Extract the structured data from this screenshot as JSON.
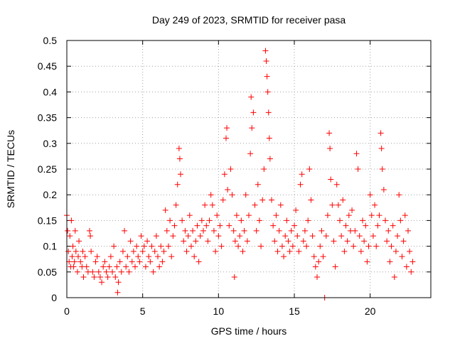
{
  "chart_data": {
    "type": "scatter",
    "title": "Day 249 of 2023, SRMTID for receiver pasa",
    "xlabel": "GPS time / hours",
    "ylabel": "SRMTID / TECUs",
    "xlim": [
      0,
      24
    ],
    "ylim": [
      0,
      0.5
    ],
    "xticks": [
      0,
      5,
      10,
      15,
      20
    ],
    "xtick_labels": [
      "0",
      "5",
      "10",
      "15",
      "20"
    ],
    "yticks": [
      0,
      0.05,
      0.1,
      0.15,
      0.2,
      0.25,
      0.3,
      0.35,
      0.4,
      0.45,
      0.5
    ],
    "ytick_labels": [
      "0",
      "0.05",
      "0.1",
      "0.15",
      "0.2",
      "0.25",
      "0.3",
      "0.35",
      "0.4",
      "0.45",
      "0.5"
    ],
    "grid": true,
    "marker": "+",
    "series": [
      {
        "name": "SRMTID",
        "color": "#ff0000",
        "points": [
          [
            0.0,
            0.16
          ],
          [
            0.05,
            0.13
          ],
          [
            0.1,
            0.09
          ],
          [
            0.15,
            0.07
          ],
          [
            0.2,
            0.12
          ],
          [
            0.25,
            0.06
          ],
          [
            0.3,
            0.15
          ],
          [
            0.35,
            0.08
          ],
          [
            0.4,
            0.1
          ],
          [
            0.45,
            0.06
          ],
          [
            0.5,
            0.07
          ],
          [
            0.55,
            0.13
          ],
          [
            0.6,
            0.09
          ],
          [
            0.7,
            0.05
          ],
          [
            0.75,
            0.08
          ],
          [
            0.8,
            0.11
          ],
          [
            0.9,
            0.07
          ],
          [
            1.0,
            0.06
          ],
          [
            1.05,
            0.09
          ],
          [
            1.1,
            0.04
          ],
          [
            1.2,
            0.08
          ],
          [
            1.3,
            0.06
          ],
          [
            1.4,
            0.05
          ],
          [
            1.5,
            0.13
          ],
          [
            1.55,
            0.12
          ],
          [
            1.6,
            0.09
          ],
          [
            1.7,
            0.05
          ],
          [
            1.8,
            0.04
          ],
          [
            1.9,
            0.07
          ],
          [
            2.0,
            0.08
          ],
          [
            2.1,
            0.05
          ],
          [
            2.2,
            0.04
          ],
          [
            2.3,
            0.03
          ],
          [
            2.4,
            0.06
          ],
          [
            2.5,
            0.07
          ],
          [
            2.6,
            0.05
          ],
          [
            2.7,
            0.04
          ],
          [
            2.8,
            0.06
          ],
          [
            2.9,
            0.08
          ],
          [
            3.0,
            0.05
          ],
          [
            3.1,
            0.1
          ],
          [
            3.2,
            0.04
          ],
          [
            3.3,
            0.06
          ],
          [
            3.35,
            0.01
          ],
          [
            3.4,
            0.03
          ],
          [
            3.5,
            0.07
          ],
          [
            3.6,
            0.05
          ],
          [
            3.7,
            0.09
          ],
          [
            3.8,
            0.13
          ],
          [
            3.9,
            0.06
          ],
          [
            4.0,
            0.08
          ],
          [
            4.1,
            0.05
          ],
          [
            4.2,
            0.11
          ],
          [
            4.3,
            0.07
          ],
          [
            4.4,
            0.09
          ],
          [
            4.5,
            0.06
          ],
          [
            4.6,
            0.1
          ],
          [
            4.7,
            0.08
          ],
          [
            4.8,
            0.07
          ],
          [
            4.9,
            0.12
          ],
          [
            5.0,
            0.09
          ],
          [
            5.1,
            0.1
          ],
          [
            5.2,
            0.06
          ],
          [
            5.3,
            0.11
          ],
          [
            5.4,
            0.08
          ],
          [
            5.5,
            0.07
          ],
          [
            5.6,
            0.1
          ],
          [
            5.7,
            0.05
          ],
          [
            5.8,
            0.09
          ],
          [
            5.9,
            0.12
          ],
          [
            6.0,
            0.08
          ],
          [
            6.1,
            0.06
          ],
          [
            6.2,
            0.1
          ],
          [
            6.3,
            0.07
          ],
          [
            6.4,
            0.09
          ],
          [
            6.5,
            0.17
          ],
          [
            6.6,
            0.13
          ],
          [
            6.7,
            0.1
          ],
          [
            6.8,
            0.15
          ],
          [
            6.9,
            0.08
          ],
          [
            7.0,
            0.12
          ],
          [
            7.1,
            0.14
          ],
          [
            7.2,
            0.18
          ],
          [
            7.3,
            0.22
          ],
          [
            7.4,
            0.29
          ],
          [
            7.45,
            0.27
          ],
          [
            7.5,
            0.24
          ],
          [
            7.6,
            0.15
          ],
          [
            7.7,
            0.11
          ],
          [
            7.8,
            0.13
          ],
          [
            7.9,
            0.09
          ],
          [
            8.0,
            0.12
          ],
          [
            8.1,
            0.16
          ],
          [
            8.2,
            0.1
          ],
          [
            8.3,
            0.13
          ],
          [
            8.4,
            0.08
          ],
          [
            8.5,
            0.11
          ],
          [
            8.6,
            0.14
          ],
          [
            8.7,
            0.07
          ],
          [
            8.8,
            0.12
          ],
          [
            8.9,
            0.15
          ],
          [
            9.0,
            0.13
          ],
          [
            9.1,
            0.18
          ],
          [
            9.2,
            0.14
          ],
          [
            9.3,
            0.11
          ],
          [
            9.4,
            0.15
          ],
          [
            9.5,
            0.2
          ],
          [
            9.6,
            0.18
          ],
          [
            9.7,
            0.13
          ],
          [
            9.8,
            0.09
          ],
          [
            9.9,
            0.16
          ],
          [
            10.0,
            0.12
          ],
          [
            10.1,
            0.14
          ],
          [
            10.2,
            0.1
          ],
          [
            10.3,
            0.19
          ],
          [
            10.4,
            0.24
          ],
          [
            10.5,
            0.31
          ],
          [
            10.55,
            0.33
          ],
          [
            10.6,
            0.21
          ],
          [
            10.7,
            0.14
          ],
          [
            10.8,
            0.25
          ],
          [
            10.9,
            0.2
          ],
          [
            11.0,
            0.13
          ],
          [
            11.05,
            0.04
          ],
          [
            11.1,
            0.11
          ],
          [
            11.2,
            0.16
          ],
          [
            11.3,
            0.1
          ],
          [
            11.4,
            0.12
          ],
          [
            11.5,
            0.15
          ],
          [
            11.6,
            0.09
          ],
          [
            11.7,
            0.13
          ],
          [
            11.8,
            0.2
          ],
          [
            11.9,
            0.11
          ],
          [
            12.0,
            0.16
          ],
          [
            12.1,
            0.28
          ],
          [
            12.15,
            0.39
          ],
          [
            12.2,
            0.33
          ],
          [
            12.3,
            0.36
          ],
          [
            12.4,
            0.18
          ],
          [
            12.5,
            0.13
          ],
          [
            12.6,
            0.22
          ],
          [
            12.7,
            0.15
          ],
          [
            12.8,
            0.1
          ],
          [
            12.9,
            0.19
          ],
          [
            13.0,
            0.25
          ],
          [
            13.1,
            0.48
          ],
          [
            13.15,
            0.46
          ],
          [
            13.2,
            0.43
          ],
          [
            13.25,
            0.4
          ],
          [
            13.3,
            0.36
          ],
          [
            13.35,
            0.31
          ],
          [
            13.4,
            0.27
          ],
          [
            13.5,
            0.19
          ],
          [
            13.6,
            0.14
          ],
          [
            13.7,
            0.11
          ],
          [
            13.8,
            0.16
          ],
          [
            13.9,
            0.09
          ],
          [
            14.0,
            0.13
          ],
          [
            14.1,
            0.18
          ],
          [
            14.2,
            0.1
          ],
          [
            14.3,
            0.08
          ],
          [
            14.4,
            0.12
          ],
          [
            14.5,
            0.15
          ],
          [
            14.6,
            0.11
          ],
          [
            14.7,
            0.09
          ],
          [
            14.8,
            0.13
          ],
          [
            14.9,
            0.1
          ],
          [
            15.0,
            0.14
          ],
          [
            15.1,
            0.17
          ],
          [
            15.2,
            0.12
          ],
          [
            15.3,
            0.09
          ],
          [
            15.4,
            0.22
          ],
          [
            15.5,
            0.24
          ],
          [
            15.6,
            0.11
          ],
          [
            15.7,
            0.13
          ],
          [
            15.8,
            0.1
          ],
          [
            15.9,
            0.15
          ],
          [
            16.0,
            0.25
          ],
          [
            16.1,
            0.19
          ],
          [
            16.2,
            0.12
          ],
          [
            16.3,
            0.08
          ],
          [
            16.4,
            0.06
          ],
          [
            16.5,
            0.04
          ],
          [
            16.6,
            0.07
          ],
          [
            16.7,
            0.1
          ],
          [
            16.8,
            0.13
          ],
          [
            16.9,
            0.08
          ],
          [
            17.0,
            0.0
          ],
          [
            17.1,
            0.12
          ],
          [
            17.2,
            0.16
          ],
          [
            17.3,
            0.32
          ],
          [
            17.35,
            0.29
          ],
          [
            17.4,
            0.23
          ],
          [
            17.5,
            0.18
          ],
          [
            17.6,
            0.11
          ],
          [
            17.7,
            0.06
          ],
          [
            17.8,
            0.22
          ],
          [
            17.9,
            0.18
          ],
          [
            18.0,
            0.15
          ],
          [
            18.1,
            0.12
          ],
          [
            18.2,
            0.19
          ],
          [
            18.3,
            0.09
          ],
          [
            18.4,
            0.14
          ],
          [
            18.5,
            0.11
          ],
          [
            18.6,
            0.16
          ],
          [
            18.7,
            0.13
          ],
          [
            18.8,
            0.17
          ],
          [
            18.9,
            0.1
          ],
          [
            19.0,
            0.13
          ],
          [
            19.1,
            0.28
          ],
          [
            19.2,
            0.25
          ],
          [
            19.3,
            0.12
          ],
          [
            19.4,
            0.09
          ],
          [
            19.5,
            0.15
          ],
          [
            19.6,
            0.11
          ],
          [
            19.7,
            0.14
          ],
          [
            19.8,
            0.07
          ],
          [
            19.9,
            0.1
          ],
          [
            20.0,
            0.2
          ],
          [
            20.1,
            0.16
          ],
          [
            20.2,
            0.12
          ],
          [
            20.3,
            0.18
          ],
          [
            20.4,
            0.1
          ],
          [
            20.5,
            0.14
          ],
          [
            20.6,
            0.16
          ],
          [
            20.7,
            0.32
          ],
          [
            20.75,
            0.29
          ],
          [
            20.8,
            0.25
          ],
          [
            20.9,
            0.21
          ],
          [
            21.0,
            0.15
          ],
          [
            21.1,
            0.11
          ],
          [
            21.2,
            0.13
          ],
          [
            21.3,
            0.07
          ],
          [
            21.4,
            0.1
          ],
          [
            21.5,
            0.14
          ],
          [
            21.6,
            0.04
          ],
          [
            21.7,
            0.09
          ],
          [
            21.8,
            0.12
          ],
          [
            21.9,
            0.2
          ],
          [
            22.0,
            0.15
          ],
          [
            22.1,
            0.08
          ],
          [
            22.2,
            0.11
          ],
          [
            22.3,
            0.16
          ],
          [
            22.4,
            0.06
          ],
          [
            22.5,
            0.13
          ],
          [
            22.6,
            0.09
          ],
          [
            22.7,
            0.05
          ],
          [
            22.8,
            0.07
          ]
        ]
      }
    ]
  }
}
